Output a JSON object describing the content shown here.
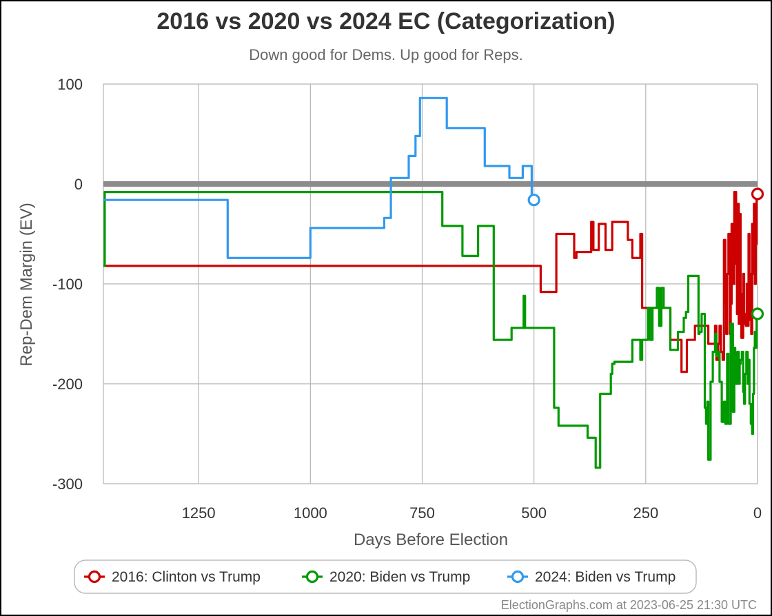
{
  "chart_data": {
    "type": "line",
    "title": "2016 vs 2020 vs 2024 EC (Categorization)",
    "subtitle": "Down good for Dems. Up good for Reps.",
    "xlabel": "Days Before Election",
    "ylabel": "Rep-Dem Margin (EV)",
    "xlim": [
      1463,
      0
    ],
    "ylim": [
      -300,
      100
    ],
    "x_reversed": true,
    "x_ticks": [
      1250,
      1000,
      750,
      500,
      250,
      0
    ],
    "y_ticks": [
      100,
      0,
      -100,
      -200,
      -300
    ],
    "x_tick_labels": [
      "1250",
      "1000",
      "750",
      "500",
      "250",
      "0"
    ],
    "y_tick_labels": [
      "100",
      "0",
      "-100",
      "-200",
      "-300"
    ],
    "grid": true,
    "reference_line": 0,
    "legend_position": "bottom",
    "credit": "ElectionGraphs.com at 2023-06-25 21:30 UTC",
    "series": [
      {
        "name": "2016: Clinton vs Trump",
        "color": "#cc0000",
        "step": true,
        "end_marker": true,
        "points": [
          [
            1463,
            -82
          ],
          [
            495,
            -82
          ],
          [
            485,
            -108
          ],
          [
            455,
            -108
          ],
          [
            450,
            -50
          ],
          [
            420,
            -50
          ],
          [
            410,
            -74
          ],
          [
            405,
            -68
          ],
          [
            375,
            -68
          ],
          [
            372,
            -38
          ],
          [
            367,
            -66
          ],
          [
            358,
            -66
          ],
          [
            355,
            -40
          ],
          [
            340,
            -66
          ],
          [
            330,
            -66
          ],
          [
            325,
            -38
          ],
          [
            295,
            -38
          ],
          [
            290,
            -56
          ],
          [
            280,
            -74
          ],
          [
            265,
            -74
          ],
          [
            262,
            -50
          ],
          [
            258,
            -124
          ],
          [
            240,
            -124
          ],
          [
            230,
            -124
          ],
          [
            220,
            -124
          ],
          [
            205,
            -124
          ],
          [
            195,
            -156
          ],
          [
            175,
            -156
          ],
          [
            170,
            -188
          ],
          [
            160,
            -188
          ],
          [
            158,
            -156
          ],
          [
            145,
            -156
          ],
          [
            140,
            -142
          ],
          [
            120,
            -142
          ],
          [
            115,
            -142
          ],
          [
            110,
            -160
          ],
          [
            100,
            -160
          ],
          [
            95,
            -142
          ],
          [
            92,
            -176
          ],
          [
            88,
            -160
          ],
          [
            85,
            -142
          ],
          [
            82,
            -168
          ],
          [
            78,
            -176
          ],
          [
            75,
            -56
          ],
          [
            72,
            -120
          ],
          [
            70,
            -150
          ],
          [
            68,
            -90
          ],
          [
            65,
            -50
          ],
          [
            62,
            -150
          ],
          [
            60,
            -120
          ],
          [
            58,
            -40
          ],
          [
            55,
            -100
          ],
          [
            52,
            -8
          ],
          [
            50,
            -8
          ],
          [
            48,
            -80
          ],
          [
            46,
            -130
          ],
          [
            44,
            -20
          ],
          [
            42,
            -140
          ],
          [
            40,
            -30
          ],
          [
            38,
            -110
          ],
          [
            36,
            -154
          ],
          [
            34,
            -154
          ],
          [
            32,
            -90
          ],
          [
            30,
            -140
          ],
          [
            28,
            -130
          ],
          [
            26,
            -142
          ],
          [
            24,
            -100
          ],
          [
            22,
            -142
          ],
          [
            20,
            -50
          ],
          [
            18,
            -136
          ],
          [
            16,
            -90
          ],
          [
            14,
            -150
          ],
          [
            12,
            -40
          ],
          [
            10,
            -90
          ],
          [
            8,
            -20
          ],
          [
            6,
            -100
          ],
          [
            4,
            -60
          ],
          [
            2,
            -10
          ],
          [
            0,
            -10
          ]
        ]
      },
      {
        "name": "2020: Biden vs Trump",
        "color": "#009900",
        "step": true,
        "end_marker": true,
        "points": [
          [
            1463,
            -82
          ],
          [
            1460,
            -8
          ],
          [
            710,
            -8
          ],
          [
            705,
            -42
          ],
          [
            665,
            -42
          ],
          [
            660,
            -72
          ],
          [
            630,
            -72
          ],
          [
            625,
            -42
          ],
          [
            595,
            -42
          ],
          [
            590,
            -156
          ],
          [
            555,
            -156
          ],
          [
            550,
            -144
          ],
          [
            525,
            -144
          ],
          [
            523,
            -112
          ],
          [
            520,
            -144
          ],
          [
            505,
            -144
          ],
          [
            500,
            -144
          ],
          [
            460,
            -144
          ],
          [
            455,
            -224
          ],
          [
            445,
            -242
          ],
          [
            385,
            -242
          ],
          [
            380,
            -254
          ],
          [
            365,
            -254
          ],
          [
            362,
            -284
          ],
          [
            355,
            -284
          ],
          [
            352,
            -210
          ],
          [
            330,
            -210
          ],
          [
            328,
            -190
          ],
          [
            325,
            -180
          ],
          [
            320,
            -178
          ],
          [
            285,
            -178
          ],
          [
            280,
            -156
          ],
          [
            265,
            -156
          ],
          [
            262,
            -176
          ],
          [
            258,
            -156
          ],
          [
            250,
            -156
          ],
          [
            245,
            -124
          ],
          [
            240,
            -156
          ],
          [
            235,
            -124
          ],
          [
            230,
            -124
          ],
          [
            225,
            -104
          ],
          [
            220,
            -142
          ],
          [
            215,
            -104
          ],
          [
            210,
            -124
          ],
          [
            200,
            -124
          ],
          [
            195,
            -166
          ],
          [
            180,
            -166
          ],
          [
            178,
            -148
          ],
          [
            170,
            -148
          ],
          [
            165,
            -134
          ],
          [
            160,
            -128
          ],
          [
            155,
            -92
          ],
          [
            135,
            -92
          ],
          [
            132,
            -150
          ],
          [
            130,
            -148
          ],
          [
            125,
            -130
          ],
          [
            118,
            -224
          ],
          [
            115,
            -240
          ],
          [
            112,
            -218
          ],
          [
            110,
            -276
          ],
          [
            105,
            -198
          ],
          [
            100,
            -168
          ],
          [
            95,
            -150
          ],
          [
            92,
            -172
          ],
          [
            88,
            -168
          ],
          [
            85,
            -198
          ],
          [
            80,
            -238
          ],
          [
            75,
            -218
          ],
          [
            72,
            -240
          ],
          [
            68,
            -170
          ],
          [
            65,
            -240
          ],
          [
            60,
            -140
          ],
          [
            55,
            -228
          ],
          [
            52,
            -164
          ],
          [
            50,
            -180
          ],
          [
            48,
            -200
          ],
          [
            45,
            -168
          ],
          [
            42,
            -200
          ],
          [
            40,
            -180
          ],
          [
            38,
            -176
          ],
          [
            35,
            -168
          ],
          [
            32,
            -208
          ],
          [
            30,
            -220
          ],
          [
            28,
            -190
          ],
          [
            25,
            -168
          ],
          [
            22,
            -200
          ],
          [
            20,
            -176
          ],
          [
            18,
            -220
          ],
          [
            15,
            -240
          ],
          [
            12,
            -250
          ],
          [
            10,
            -210
          ],
          [
            8,
            -164
          ],
          [
            6,
            -148
          ],
          [
            4,
            -164
          ],
          [
            2,
            -130
          ],
          [
            0,
            -130
          ]
        ]
      },
      {
        "name": "2024: Biden vs Trump",
        "color": "#3399ee",
        "step": true,
        "end_marker": true,
        "points": [
          [
            1463,
            -16
          ],
          [
            1190,
            -16
          ],
          [
            1185,
            -74
          ],
          [
            1005,
            -74
          ],
          [
            1000,
            -44
          ],
          [
            840,
            -44
          ],
          [
            835,
            -34
          ],
          [
            825,
            -34
          ],
          [
            820,
            6
          ],
          [
            785,
            6
          ],
          [
            780,
            28
          ],
          [
            770,
            28
          ],
          [
            765,
            48
          ],
          [
            760,
            48
          ],
          [
            755,
            86
          ],
          [
            700,
            86
          ],
          [
            695,
            56
          ],
          [
            615,
            56
          ],
          [
            610,
            18
          ],
          [
            560,
            18
          ],
          [
            555,
            6
          ],
          [
            530,
            6
          ],
          [
            525,
            18
          ],
          [
            510,
            18
          ],
          [
            505,
            -16
          ],
          [
            500,
            -16
          ]
        ]
      }
    ]
  }
}
